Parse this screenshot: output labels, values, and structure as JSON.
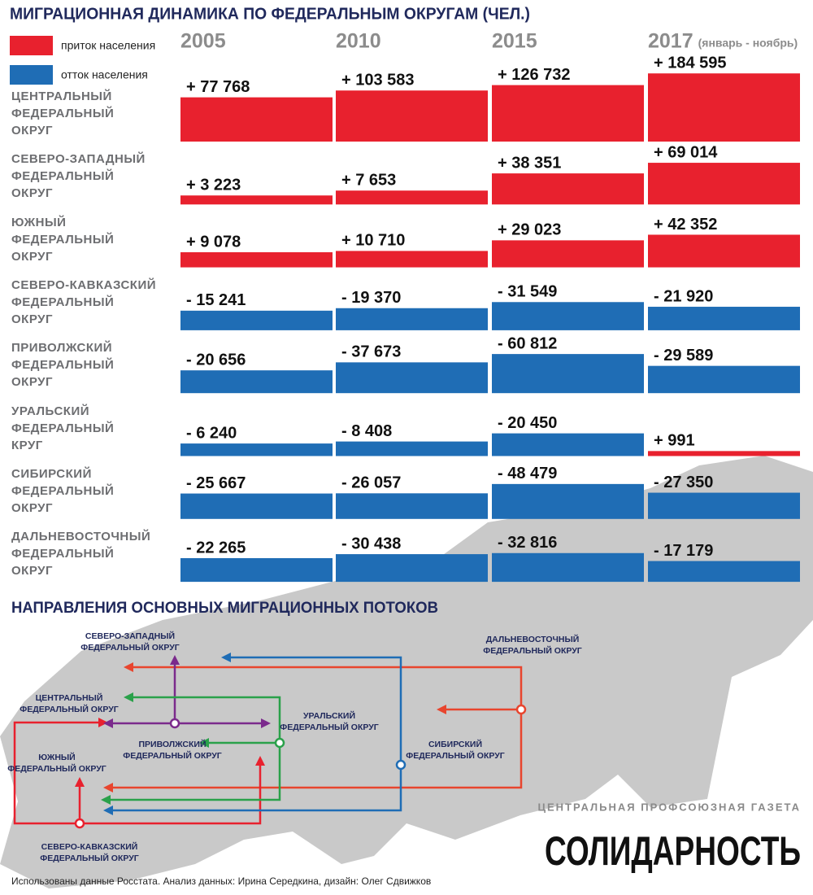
{
  "chart_data": {
    "type": "bar",
    "title": "МИГРАЦИОННАЯ ДИНАМИКА ПО ФЕДЕРАЛЬНЫМ ОКРУГАМ (ЧЕЛ.)",
    "legend": [
      {
        "name": "приток населения",
        "color": "#e8212e"
      },
      {
        "name": "отток населения",
        "color": "#1f6db5"
      }
    ],
    "period_note": "(январь - ноябрь)",
    "categories": [
      "ЦЕНТРАЛЬНЫЙ ФЕДЕРАЛЬНЫЙ ОКРУГ",
      "СЕВЕРО-ЗАПАДНЫЙ ФЕДЕРАЛЬНЫЙ ОКРУГ",
      "ЮЖНЫЙ ФЕДЕРАЛЬНЫЙ ОКРУГ",
      "СЕВЕРО-КАВКАЗСКИЙ ФЕДЕРАЛЬНЫЙ ОКРУГ",
      "ПРИВОЛЖСКИЙ ФЕДЕРАЛЬНЫЙ ОКРУГ",
      "УРАЛЬСКИЙ ФЕДЕРАЛЬНЫЙ КРУГ",
      "СИБИРСКИЙ ФЕДЕРАЛЬНЫЙ ОКРУГ",
      "ДАЛЬНЕВОСТОЧНЫЙ ФЕДЕРАЛЬНЫЙ ОКРУГ"
    ],
    "series": [
      {
        "name": "2005",
        "values": [
          77768,
          3223,
          9078,
          -15241,
          -20656,
          -6240,
          -25667,
          -22265
        ],
        "value_labels": [
          "+ 77 768",
          "+ 3 223",
          "+ 9 078",
          "- 15 241",
          "- 20 656",
          "- 6 240",
          "- 25 667",
          "- 22 265"
        ]
      },
      {
        "name": "2010",
        "values": [
          103583,
          7653,
          10710,
          -19370,
          -37673,
          -8408,
          -26057,
          -30438
        ],
        "value_labels": [
          "+ 103 583",
          "+ 7 653",
          "+ 10 710",
          "- 19 370",
          "- 37 673",
          "- 8 408",
          "- 26 057",
          "- 30 438"
        ]
      },
      {
        "name": "2015",
        "values": [
          126732,
          38351,
          29023,
          -31549,
          -60812,
          -20450,
          -48479,
          -32816
        ],
        "value_labels": [
          "+ 126 732",
          "+ 38 351",
          "+ 29 023",
          "- 31 549",
          "- 60 812",
          "- 20 450",
          "- 48 479",
          "- 32 816"
        ]
      },
      {
        "name": "2017",
        "values": [
          184595,
          69014,
          42352,
          -21920,
          -29589,
          991,
          -27350,
          -17179
        ],
        "value_labels": [
          "+ 184 595",
          "+ 69 014",
          "+ 42 352",
          "- 21 920",
          "- 29 589",
          "+ 991",
          "- 27 350",
          "- 17 179"
        ]
      }
    ]
  },
  "flow_map": {
    "title": "НАПРАВЛЕНИЯ ОСНОВНЫХ МИГРАЦИОННЫХ ПОТОКОВ",
    "regions": [
      {
        "label": [
          "СЕВЕРО-ЗАПАДНЫЙ",
          "ФЕДЕРАЛЬНЫЙ ОКРУГ"
        ]
      },
      {
        "label": [
          "ЦЕНТРАЛЬНЫЙ",
          "ФЕДЕРАЛЬНЫЙ ОКРУГ"
        ]
      },
      {
        "label": [
          "ПРИВОЛЖСКИЙ",
          "ФЕДЕРАЛЬНЫЙ ОКРУГ"
        ]
      },
      {
        "label": [
          "УРАЛЬСКИЙ",
          "ФЕДЕРАЛЬНЫЙ ОКРУГ"
        ]
      },
      {
        "label": [
          "СИБИРСКИЙ",
          "ФЕДЕРАЛЬНЫЙ ОКРУГ"
        ]
      },
      {
        "label": [
          "ДАЛЬНЕВОСТОЧНЫЙ",
          "ФЕДЕРАЛЬНЫЙ ОКРУГ"
        ]
      },
      {
        "label": [
          "ЮЖНЫЙ",
          "ФЕДЕРАЛЬНЫЙ ОКРУГ"
        ]
      },
      {
        "label": [
          "СЕВЕРО-КАВКАЗСКИЙ",
          "ФЕДЕРАЛЬНЫЙ ОКРУГ"
        ]
      }
    ]
  },
  "publication": {
    "tagline": "ЦЕНТРАЛЬНАЯ ПРОФСОЮЗНАЯ ГАЗЕТА",
    "name": "СОЛИДАРНОСТЬ"
  },
  "footer": "Использованы данные Росстата. Анализ данных: Ирина Середкина, дизайн: Олег Сдвижков"
}
